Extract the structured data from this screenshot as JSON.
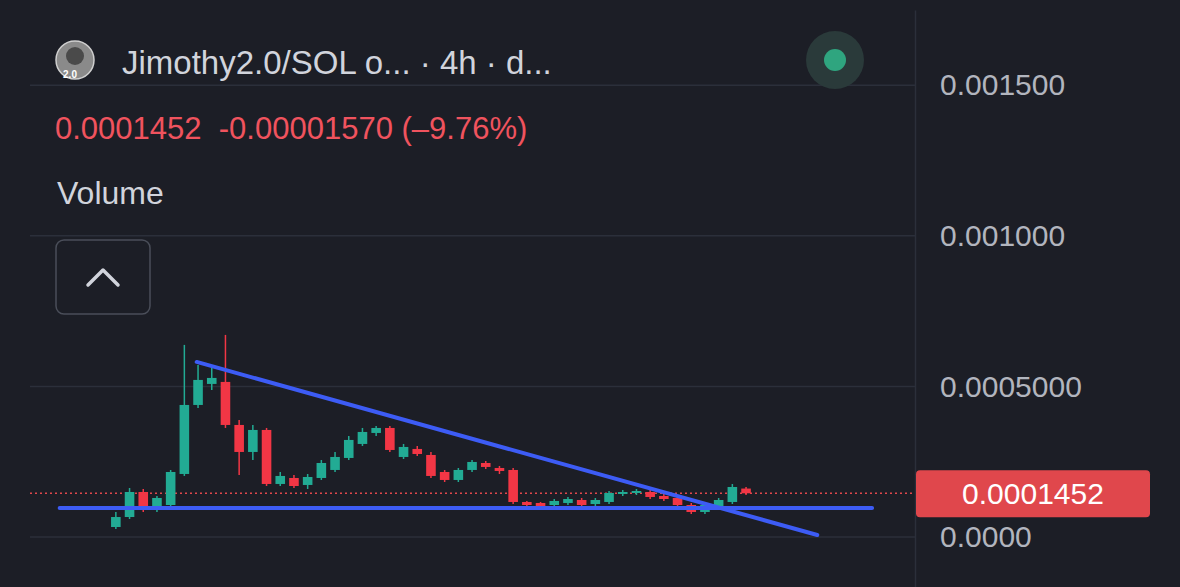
{
  "chart_data": {
    "type": "candlestick",
    "title": "Jimothy2.0/SOL o... · 4h · d...",
    "subtitle": "0.0001452  -0.00001570 (–9.76%)",
    "annotations": [
      "Volume",
      "2.0"
    ],
    "categories": [
      null,
      null,
      null,
      null,
      null,
      null,
      null,
      null,
      null,
      null,
      null,
      null,
      null,
      null,
      null,
      null,
      null,
      null,
      null,
      null,
      null,
      null,
      null,
      null,
      null,
      null,
      null,
      null,
      null,
      null,
      null,
      null,
      null,
      null,
      null,
      null,
      null,
      null,
      null,
      null,
      null,
      null,
      null,
      null,
      null,
      null,
      null
    ],
    "open": [
      3.32e-05,
      6.64e-05,
      0.0001495,
      8.97e-05,
      0.0001063,
      0.0002093,
      0.0004385,
      0.0005083,
      0.000515,
      0.0003721,
      0.0002824,
      0.0003555,
      0.0001761,
      0.000196,
      0.0001728,
      0.000196,
      0.0002226,
      0.0002625,
      0.000309,
      0.0003455,
      0.0003621,
      0.0002658,
      0.0002924,
      0.0002724,
      0.0002159,
      0.0001894,
      0.0002226,
      0.0002458,
      0.0002292,
      0.0002226,
      0.0001163,
      0.000113,
      0.0001063,
      0.000113,
      0.0001229,
      0.0001096,
      0.0001163,
      0.0001429,
      0.0001462,
      0.0001495,
      0.0001362,
      0.0001296,
      0.0001063,
      8.31e-05,
      9.97e-05,
      0.0001163,
      0.0001609
    ],
    "high": [
      8.31e-05,
      0.0001628,
      0.0001595,
      0.0001362,
      0.0002226,
      0.0006379,
      0.0005714,
      0.0005615,
      0.0006711,
      0.0003887,
      0.0003721,
      0.0003621,
      0.0002159,
      0.000206,
      0.0002093,
      0.0002558,
      0.0002824,
      0.0003355,
      0.0003621,
      0.0003688,
      0.0003688,
      0.000309,
      0.0003023,
      0.0002824,
      0.0002226,
      0.0002292,
      0.0002558,
      0.0002525,
      0.0002359,
      0.0002292,
      0.0001196,
      0.0001163,
      0.0001262,
      0.0001329,
      0.0001296,
      0.0001296,
      0.0001528,
      0.0001561,
      0.0001595,
      0.0001561,
      0.0001429,
      0.0001362,
      0.000113,
      0.000113,
      0.0001296,
      0.0001761,
      0.0001661
    ],
    "low": [
      2.66e-05,
      5.98e-05,
      8.31e-05,
      8.31e-05,
      9.97e-05,
      0.0002027,
      0.0004286,
      0.0004884,
      0.0003621,
      0.000206,
      0.0002558,
      0.0001694,
      0.0001694,
      0.0001628,
      0.0001595,
      0.0001894,
      0.0002159,
      0.0002558,
      0.0003023,
      0.0003355,
      0.0002824,
      0.0002591,
      0.0002691,
      0.000196,
      0.0001827,
      0.0001827,
      0.0002159,
      0.0002259,
      0.0002093,
      0.0001096,
      0.000103,
      9.97e-05,
      9.97e-05,
      0.0001063,
      9.97e-05,
      0.000103,
      0.0001096,
      0.0001362,
      0.0001395,
      0.0001262,
      0.0001196,
      9.97e-05,
      7.64e-05,
      7.64e-05,
      9.3e-05,
      0.0001096,
      0.0001395
    ],
    "close": [
      6.64e-05,
      0.0001495,
      8.97e-05,
      0.0001296,
      0.0002159,
      0.0004385,
      0.0005216,
      0.0005282,
      0.0003721,
      0.0002824,
      0.0003555,
      0.0001761,
      0.0002027,
      0.0001694,
      0.0001993,
      0.0002458,
      0.0002658,
      0.0003223,
      0.0003488,
      0.0003621,
      0.000289,
      0.000299,
      0.0002757,
      0.0002027,
      0.0001894,
      0.0002226,
      0.0002492,
      0.0002326,
      0.0002193,
      0.0001163,
      0.0001063,
      0.000103,
      0.0001196,
      0.0001262,
      0.0001063,
      0.0001229,
      0.0001462,
      0.0001495,
      0.0001528,
      0.0001329,
      0.0001262,
      0.0001063,
      8.31e-05,
      0.0001063,
      0.0001229,
      0.0001661,
      0.0001452
    ],
    "trendlines": [
      {
        "x": [
          5.9,
          51.2
        ],
        "values": [
          0.0005814,
          6.6e-06
        ],
        "color": "#3d5cf5"
      },
      {
        "x": [
          -4.1,
          55.2
        ],
        "values": [
          9.63e-05,
          9.63e-05
        ],
        "color": "#3d5cf5"
      }
    ],
    "price_line": {
      "value": 0.0001452,
      "label": "0.0001452"
    },
    "ylim": [
      -0.000166,
      0.00175
    ],
    "yticks": [
      {
        "value": 0.0015,
        "label": "0.001500"
      },
      {
        "value": 0.001,
        "label": "0.001000"
      },
      {
        "value": 0.0005,
        "label": "0.0005000"
      },
      {
        "value": 0,
        "label": "0.0000"
      }
    ],
    "grid": true,
    "tick_labels": "y"
  }
}
